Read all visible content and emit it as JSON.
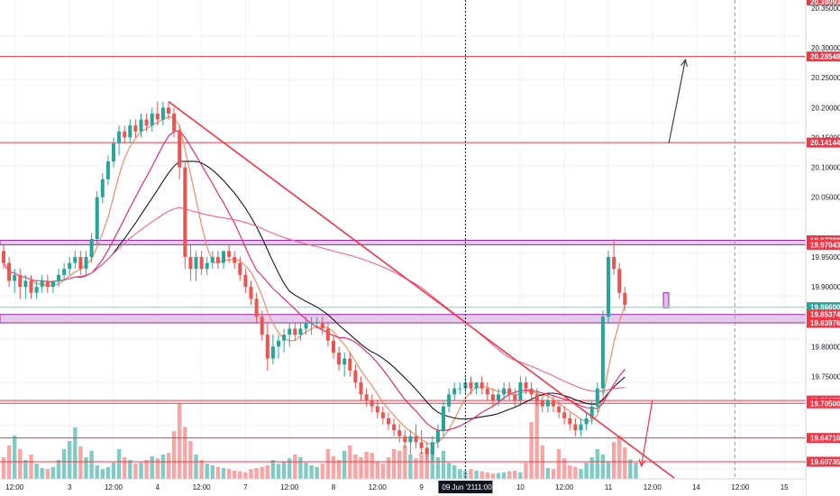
{
  "chart_data": {
    "type": "candlestick",
    "price_axis": {
      "min": 19.55,
      "max": 20.38,
      "ticks": [
        "20.30000",
        "20.25000",
        "20.20000",
        "20.15000",
        "20.10000",
        "20.05000",
        "19.95000",
        "19.90000",
        "19.80000",
        "19.75000"
      ],
      "top_label": "20.38093",
      "top_label2": "20.35000"
    },
    "time_axis": {
      "labels": [
        {
          "t": 2,
          "text": "12:00"
        },
        {
          "t": 12,
          "text": "3"
        },
        {
          "t": 20,
          "text": "12:00"
        },
        {
          "t": 28,
          "text": "4"
        },
        {
          "t": 36,
          "text": "12:00"
        },
        {
          "t": 44,
          "text": "7"
        },
        {
          "t": 52,
          "text": "12:00"
        },
        {
          "t": 60,
          "text": "8"
        },
        {
          "t": 68,
          "text": "12:00"
        },
        {
          "t": 76,
          "text": "9"
        },
        {
          "t": 94,
          "text": "10"
        },
        {
          "t": 102,
          "text": "12:00"
        },
        {
          "t": 110,
          "text": "11"
        },
        {
          "t": 118,
          "text": "12:00"
        },
        {
          "t": 126,
          "text": "14"
        },
        {
          "t": 134,
          "text": "12:00"
        },
        {
          "t": 142,
          "text": "15"
        }
      ],
      "current_time_label": "09 Jun '21",
      "current_time_label2": "11:00",
      "current_t": 84,
      "future_t": 133
    },
    "candles": [
      [
        19.96,
        19.97,
        19.93,
        19.94
      ],
      [
        19.94,
        19.95,
        19.9,
        19.91
      ],
      [
        19.91,
        19.93,
        19.89,
        19.92
      ],
      [
        19.92,
        19.93,
        19.88,
        19.9
      ],
      [
        19.9,
        19.92,
        19.88,
        19.91
      ],
      [
        19.91,
        19.92,
        19.88,
        19.89
      ],
      [
        19.89,
        19.91,
        19.88,
        19.9
      ],
      [
        19.9,
        19.92,
        19.89,
        19.91
      ],
      [
        19.91,
        19.92,
        19.89,
        19.9
      ],
      [
        19.9,
        19.91,
        19.89,
        19.91
      ],
      [
        19.91,
        19.93,
        19.9,
        19.92
      ],
      [
        19.92,
        19.94,
        19.91,
        19.93
      ],
      [
        19.93,
        19.95,
        19.92,
        19.94
      ],
      [
        19.94,
        19.96,
        19.93,
        19.95
      ],
      [
        19.95,
        19.96,
        19.92,
        19.93
      ],
      [
        19.93,
        19.96,
        19.92,
        19.95
      ],
      [
        19.95,
        19.99,
        19.94,
        19.98
      ],
      [
        19.98,
        20.06,
        19.97,
        20.05
      ],
      [
        20.05,
        20.09,
        20.04,
        20.08
      ],
      [
        20.08,
        20.12,
        20.07,
        20.11
      ],
      [
        20.11,
        20.15,
        20.1,
        20.14
      ],
      [
        20.14,
        20.17,
        20.12,
        20.16
      ],
      [
        20.16,
        20.17,
        20.14,
        20.15
      ],
      [
        20.15,
        20.18,
        20.14,
        20.17
      ],
      [
        20.17,
        20.18,
        20.15,
        20.16
      ],
      [
        20.16,
        20.19,
        20.15,
        20.18
      ],
      [
        20.18,
        20.19,
        20.16,
        20.17
      ],
      [
        20.17,
        20.2,
        20.16,
        20.19
      ],
      [
        20.19,
        20.21,
        20.17,
        20.18
      ],
      [
        20.18,
        20.21,
        20.17,
        20.2
      ],
      [
        20.2,
        20.21,
        20.18,
        20.19
      ],
      [
        20.19,
        20.2,
        20.15,
        20.16
      ],
      [
        20.16,
        20.17,
        20.08,
        20.1
      ],
      [
        20.1,
        20.11,
        19.93,
        19.95
      ],
      [
        19.95,
        19.97,
        19.91,
        19.93
      ],
      [
        19.93,
        19.96,
        19.91,
        19.95
      ],
      [
        19.95,
        19.96,
        19.92,
        19.93
      ],
      [
        19.93,
        19.95,
        19.92,
        19.94
      ],
      [
        19.94,
        19.96,
        19.93,
        19.95
      ],
      [
        19.95,
        19.96,
        19.93,
        19.94
      ],
      [
        19.94,
        19.96,
        19.93,
        19.96
      ],
      [
        19.96,
        19.97,
        19.94,
        19.95
      ],
      [
        19.95,
        19.96,
        19.93,
        19.94
      ],
      [
        19.94,
        19.95,
        19.91,
        19.92
      ],
      [
        19.92,
        19.93,
        19.89,
        19.9
      ],
      [
        19.9,
        19.91,
        19.87,
        19.88
      ],
      [
        19.88,
        19.89,
        19.84,
        19.85
      ],
      [
        19.85,
        19.86,
        19.81,
        19.82
      ],
      [
        19.82,
        19.84,
        19.76,
        19.78
      ],
      [
        19.78,
        19.82,
        19.77,
        19.8
      ],
      [
        19.8,
        19.82,
        19.78,
        19.81
      ],
      [
        19.81,
        19.83,
        19.79,
        19.82
      ],
      [
        19.82,
        19.84,
        19.8,
        19.83
      ],
      [
        19.83,
        19.84,
        19.81,
        19.82
      ],
      [
        19.82,
        19.84,
        19.81,
        19.83
      ],
      [
        19.83,
        19.85,
        19.82,
        19.84
      ],
      [
        19.84,
        19.85,
        19.82,
        19.84
      ],
      [
        19.84,
        19.85,
        19.83,
        19.84
      ],
      [
        19.84,
        19.85,
        19.82,
        19.83
      ],
      [
        19.83,
        19.84,
        19.8,
        19.81
      ],
      [
        19.81,
        19.82,
        19.78,
        19.79
      ],
      [
        19.79,
        19.8,
        19.76,
        19.77
      ],
      [
        19.77,
        19.79,
        19.75,
        19.78
      ],
      [
        19.78,
        19.79,
        19.75,
        19.76
      ],
      [
        19.76,
        19.77,
        19.73,
        19.74
      ],
      [
        19.74,
        19.75,
        19.71,
        19.72
      ],
      [
        19.72,
        19.73,
        19.7,
        19.71
      ],
      [
        19.71,
        19.72,
        19.69,
        19.7
      ],
      [
        19.7,
        19.71,
        19.68,
        19.69
      ],
      [
        19.69,
        19.7,
        19.67,
        19.68
      ],
      [
        19.68,
        19.69,
        19.66,
        19.67
      ],
      [
        19.67,
        19.68,
        19.65,
        19.66
      ],
      [
        19.66,
        19.67,
        19.64,
        19.65
      ],
      [
        19.65,
        19.66,
        19.63,
        19.64
      ],
      [
        19.64,
        19.66,
        19.62,
        19.65
      ],
      [
        19.65,
        19.67,
        19.63,
        19.64
      ],
      [
        19.64,
        19.66,
        19.62,
        19.63
      ],
      [
        19.63,
        19.64,
        19.61,
        19.62
      ],
      [
        19.62,
        19.65,
        19.61,
        19.64
      ],
      [
        19.64,
        19.67,
        19.63,
        19.66
      ],
      [
        19.66,
        19.71,
        19.65,
        19.7
      ],
      [
        19.7,
        19.73,
        19.69,
        19.72
      ],
      [
        19.72,
        19.74,
        19.71,
        19.73
      ],
      [
        19.73,
        19.74,
        19.72,
        19.73
      ],
      [
        19.73,
        19.75,
        19.72,
        19.74
      ],
      [
        19.74,
        19.75,
        19.72,
        19.73
      ],
      [
        19.73,
        19.74,
        19.72,
        19.74
      ],
      [
        19.74,
        19.75,
        19.72,
        19.73
      ],
      [
        19.73,
        19.74,
        19.71,
        19.72
      ],
      [
        19.72,
        19.73,
        19.7,
        19.71
      ],
      [
        19.71,
        19.73,
        19.7,
        19.72
      ],
      [
        19.72,
        19.74,
        19.71,
        19.73
      ],
      [
        19.73,
        19.74,
        19.71,
        19.72
      ],
      [
        19.72,
        19.73,
        19.7,
        19.71
      ],
      [
        19.71,
        19.75,
        19.7,
        19.74
      ],
      [
        19.74,
        19.75,
        19.72,
        19.73
      ],
      [
        19.73,
        19.74,
        19.71,
        19.72
      ],
      [
        19.72,
        19.73,
        19.7,
        19.71
      ],
      [
        19.71,
        19.72,
        19.69,
        19.7
      ],
      [
        19.7,
        19.72,
        19.69,
        19.71
      ],
      [
        19.71,
        19.72,
        19.69,
        19.7
      ],
      [
        19.7,
        19.71,
        19.68,
        19.69
      ],
      [
        19.69,
        19.7,
        19.67,
        19.68
      ],
      [
        19.68,
        19.69,
        19.66,
        19.67
      ],
      [
        19.67,
        19.68,
        19.65,
        19.66
      ],
      [
        19.66,
        19.68,
        19.65,
        19.67
      ],
      [
        19.67,
        19.69,
        19.66,
        19.68
      ],
      [
        19.68,
        19.71,
        19.67,
        19.7
      ],
      [
        19.7,
        19.74,
        19.69,
        19.73
      ],
      [
        19.73,
        19.86,
        19.72,
        19.85
      ],
      [
        19.85,
        19.96,
        19.84,
        19.95
      ],
      [
        19.95,
        19.98,
        19.92,
        19.93
      ],
      [
        19.93,
        19.94,
        19.88,
        19.89
      ],
      [
        19.89,
        19.9,
        19.86,
        19.87
      ]
    ],
    "volume": [
      40,
      62,
      80,
      55,
      35,
      45,
      28,
      20,
      18,
      22,
      35,
      55,
      70,
      95,
      60,
      40,
      52,
      25,
      18,
      22,
      30,
      55,
      40,
      35,
      28,
      30,
      35,
      42,
      38,
      45,
      48,
      88,
      140,
      96,
      70,
      45,
      35,
      28,
      25,
      22,
      20,
      18,
      15,
      14,
      12,
      18,
      20,
      22,
      25,
      35,
      28,
      32,
      38,
      45,
      40,
      30,
      25,
      22,
      28,
      55,
      42,
      35,
      52,
      62,
      45,
      40,
      50,
      48,
      32,
      28,
      40,
      55,
      52,
      62,
      45,
      38,
      50,
      58,
      65,
      40,
      52,
      30,
      25,
      18,
      15,
      18,
      15,
      14,
      12,
      10,
      11,
      12,
      14,
      15,
      12,
      30,
      105,
      150,
      62,
      20,
      18,
      55,
      38,
      25,
      22,
      18,
      30,
      40,
      55,
      45,
      32,
      68,
      80,
      58,
      36,
      30
    ],
    "h_lines": [
      20.28548,
      20.14144,
      19.866,
      19.70977,
      19.705,
      19.6471,
      19.60735
    ],
    "h_zones": [
      {
        "top": 19.97788,
        "bottom": 19.97043,
        "fill": "#e1bee7"
      },
      {
        "top": 19.85374,
        "bottom": 19.83976,
        "fill": "#e1bee7"
      }
    ],
    "price_labels": [
      {
        "value": 20.28548,
        "text": "20.28548",
        "color": "#f23645"
      },
      {
        "value": 20.14144,
        "text": "20.14144",
        "color": "#f23645"
      },
      {
        "value": 19.97788,
        "text": "19.97788",
        "color": "#f23645"
      },
      {
        "value": 19.97064,
        "text": "19.97064",
        "color": "#f23645"
      },
      {
        "value": 19.97043,
        "text": "19.97043",
        "color": "#f23645"
      },
      {
        "value": 19.866,
        "text": "19.86600",
        "color": "#26a69a"
      },
      {
        "value": 19.85374,
        "text": "19.85374",
        "color": "#f23645"
      },
      {
        "value": 19.83976,
        "text": "19.83976",
        "color": "#f23645"
      },
      {
        "value": 19.70977,
        "text": "19.70977",
        "color": "#f23645"
      },
      {
        "value": 19.705,
        "text": "19.70500",
        "color": "#f23645"
      },
      {
        "value": 19.6471,
        "text": "19.64710",
        "color": "#f23645"
      },
      {
        "value": 19.60735,
        "text": "19.60735",
        "color": "#f23645"
      }
    ],
    "trendline": {
      "t1": 30,
      "v1": 20.21,
      "t2": 122,
      "v2": 19.58
    },
    "arrows": [
      {
        "t1": 121,
        "v1": 20.14,
        "t2": 124,
        "v2": 20.28,
        "color": "#2e4d3d"
      },
      {
        "t1": 118,
        "v1": 19.71,
        "t2": 116,
        "v2": 19.6,
        "color": "#f23645"
      }
    ],
    "colors": {
      "up": "#26a69a",
      "down": "#ef5350",
      "vol_up": "#80cbc4",
      "vol_down": "#f8a5a5",
      "ma_fast": "#f4845f",
      "ma_mid": "#e91e63",
      "ma_slow": "#131722",
      "ma_long": "#f06292",
      "line": "#f23645",
      "grid": "#f0f3fa"
    }
  }
}
